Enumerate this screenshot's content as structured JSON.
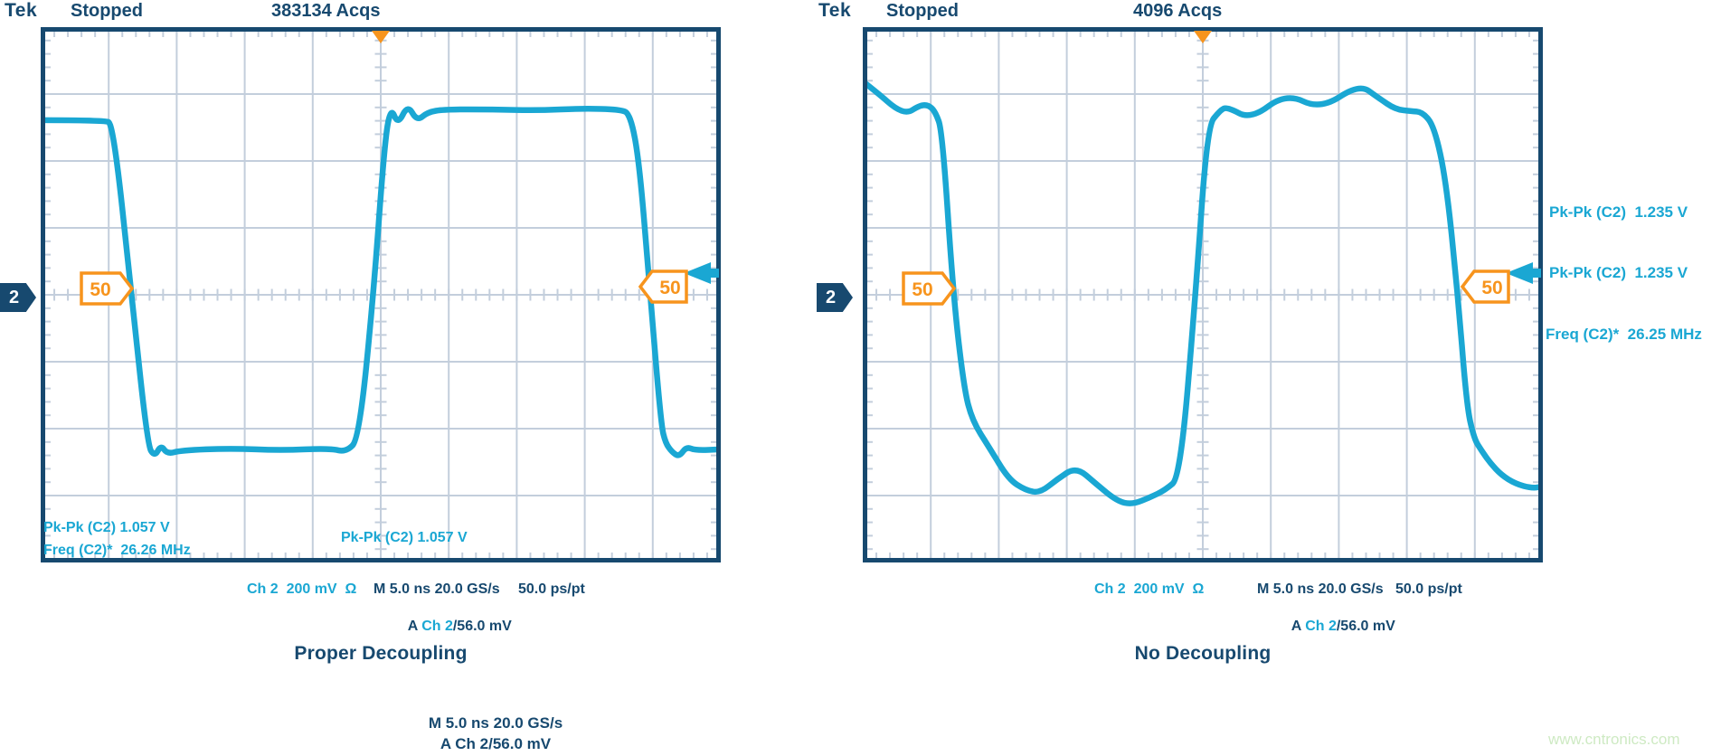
{
  "colors": {
    "navy": "#17496F",
    "cyan": "#1AA7D3",
    "orange": "#F7941D",
    "grid": "#C3CEDC",
    "badge_fill": "#FFFFFF",
    "watermark_green": "#CEEAC3",
    "background": "#FFFFFF"
  },
  "scopes": [
    {
      "header": {
        "logo": "Tek",
        "status": "Stopped",
        "acquisitions": "383134 Acqs"
      },
      "channel_badge": "2",
      "trigger_badge": "50",
      "annotations": {
        "pk_pk_1": "Pk-Pk (C2) 1.057 V",
        "freq": "Freq (C2)*  26.26 MHz",
        "pk_pk_2": "Pk-Pk (C2) 1.057 V"
      },
      "status_bar": {
        "channel_scale": "Ch 2  200 mV  Ω",
        "timebase": "M 5.0 ns 20.0 GS/s",
        "resolution": "50.0 ps/pt",
        "trigger_prefix": "A ",
        "trigger_source": "Ch 2",
        "trigger_suffix": "/56.0 mV"
      },
      "caption": "Proper Decoupling"
    },
    {
      "header": {
        "logo": "Tek",
        "status": "Stopped",
        "acquisitions": "4096 Acqs"
      },
      "channel_badge": "2",
      "trigger_badge": "50",
      "measurements": {
        "pk_pk_1": "Pk-Pk (C2)  1.235 V",
        "pk_pk_2": "Pk-Pk (C2)  1.235 V",
        "freq": "Freq (C2)*  26.25 MHz"
      },
      "status_bar": {
        "channel_scale": "Ch 2  200 mV  Ω",
        "timebase": "M 5.0 ns 20.0 GS/s",
        "resolution": "50.0 ps/pt",
        "trigger_prefix": "A ",
        "trigger_source": "Ch 2",
        "trigger_suffix": "/56.0 mV"
      },
      "caption": "No Decoupling"
    }
  ],
  "footer": {
    "timebase": "M 5.0 ns 20.0 GS/s",
    "trigger": "A Ch 2/56.0 mV",
    "watermark": "www.cntronics.com"
  },
  "chart_data": [
    {
      "type": "line",
      "title": "Proper Decoupling",
      "x_unit": "ns",
      "y_unit": "V",
      "x_range": [
        0,
        50
      ],
      "y_range": [
        -0.8,
        0.8
      ],
      "time_per_div_ns": 5,
      "volts_per_div": 0.2,
      "divisions": [
        10,
        8
      ],
      "sample_rate": "20.0 GS/s",
      "measured_pk_pk_V": 1.057,
      "measured_freq_MHz": 26.26,
      "points": [
        [
          0,
          0.522
        ],
        [
          4.65,
          0.522
        ],
        [
          5.32,
          0.511
        ],
        [
          6.65,
          0.016
        ],
        [
          7.85,
          -0.449
        ],
        [
          8.38,
          -0.484
        ],
        [
          8.84,
          -0.449
        ],
        [
          9.31,
          -0.476
        ],
        [
          10.31,
          -0.465
        ],
        [
          13.96,
          -0.459
        ],
        [
          17.62,
          -0.465
        ],
        [
          21.28,
          -0.459
        ],
        [
          22.47,
          -0.47
        ],
        [
          23.4,
          -0.43
        ],
        [
          24.47,
          0.0
        ],
        [
          25.27,
          0.449
        ],
        [
          25.73,
          0.562
        ],
        [
          26.26,
          0.508
        ],
        [
          26.99,
          0.568
        ],
        [
          27.66,
          0.519
        ],
        [
          28.46,
          0.546
        ],
        [
          29.65,
          0.554
        ],
        [
          33.24,
          0.554
        ],
        [
          36.57,
          0.551
        ],
        [
          39.89,
          0.557
        ],
        [
          42.55,
          0.554
        ],
        [
          43.35,
          0.541
        ],
        [
          44.02,
          0.395
        ],
        [
          44.81,
          0.0
        ],
        [
          45.61,
          -0.389
        ],
        [
          45.94,
          -0.443
        ],
        [
          46.41,
          -0.47
        ],
        [
          46.94,
          -0.484
        ],
        [
          47.47,
          -0.454
        ],
        [
          48.14,
          -0.465
        ],
        [
          50,
          -0.462
        ]
      ]
    },
    {
      "type": "line",
      "title": "No Decoupling",
      "x_unit": "ns",
      "y_unit": "V",
      "x_range": [
        0,
        50
      ],
      "y_range": [
        -0.8,
        0.8
      ],
      "time_per_div_ns": 5,
      "volts_per_div": 0.2,
      "divisions": [
        10,
        8
      ],
      "sample_rate": "20.0 GS/s",
      "measured_pk_pk_V": 1.235,
      "measured_freq_MHz": 26.25,
      "points": [
        [
          0,
          0.638
        ],
        [
          1.2,
          0.6
        ],
        [
          2.39,
          0.557
        ],
        [
          3.32,
          0.543
        ],
        [
          4.12,
          0.565
        ],
        [
          4.79,
          0.568
        ],
        [
          5.32,
          0.549
        ],
        [
          5.85,
          0.489
        ],
        [
          6.65,
          0.0
        ],
        [
          7.45,
          -0.281
        ],
        [
          8.05,
          -0.376
        ],
        [
          9.31,
          -0.457
        ],
        [
          10.71,
          -0.551
        ],
        [
          11.97,
          -0.584
        ],
        [
          13.03,
          -0.592
        ],
        [
          14.3,
          -0.551
        ],
        [
          15.69,
          -0.514
        ],
        [
          17.15,
          -0.565
        ],
        [
          18.68,
          -0.616
        ],
        [
          19.81,
          -0.627
        ],
        [
          21.14,
          -0.605
        ],
        [
          22.21,
          -0.584
        ],
        [
          23.34,
          -0.546
        ],
        [
          24.47,
          0.0
        ],
        [
          25.33,
          0.503
        ],
        [
          26.26,
          0.551
        ],
        [
          26.8,
          0.562
        ],
        [
          28.52,
          0.524
        ],
        [
          31.12,
          0.603
        ],
        [
          33.64,
          0.554
        ],
        [
          36.5,
          0.63
        ],
        [
          37.9,
          0.589
        ],
        [
          39.16,
          0.554
        ],
        [
          40.29,
          0.549
        ],
        [
          41.16,
          0.546
        ],
        [
          42.02,
          0.503
        ],
        [
          42.89,
          0.341
        ],
        [
          43.75,
          0.0
        ],
        [
          44.41,
          -0.335
        ],
        [
          44.95,
          -0.43
        ],
        [
          45.48,
          -0.465
        ],
        [
          46.14,
          -0.503
        ],
        [
          46.94,
          -0.538
        ],
        [
          48.0,
          -0.565
        ],
        [
          49.2,
          -0.578
        ],
        [
          50,
          -0.573
        ]
      ]
    }
  ]
}
